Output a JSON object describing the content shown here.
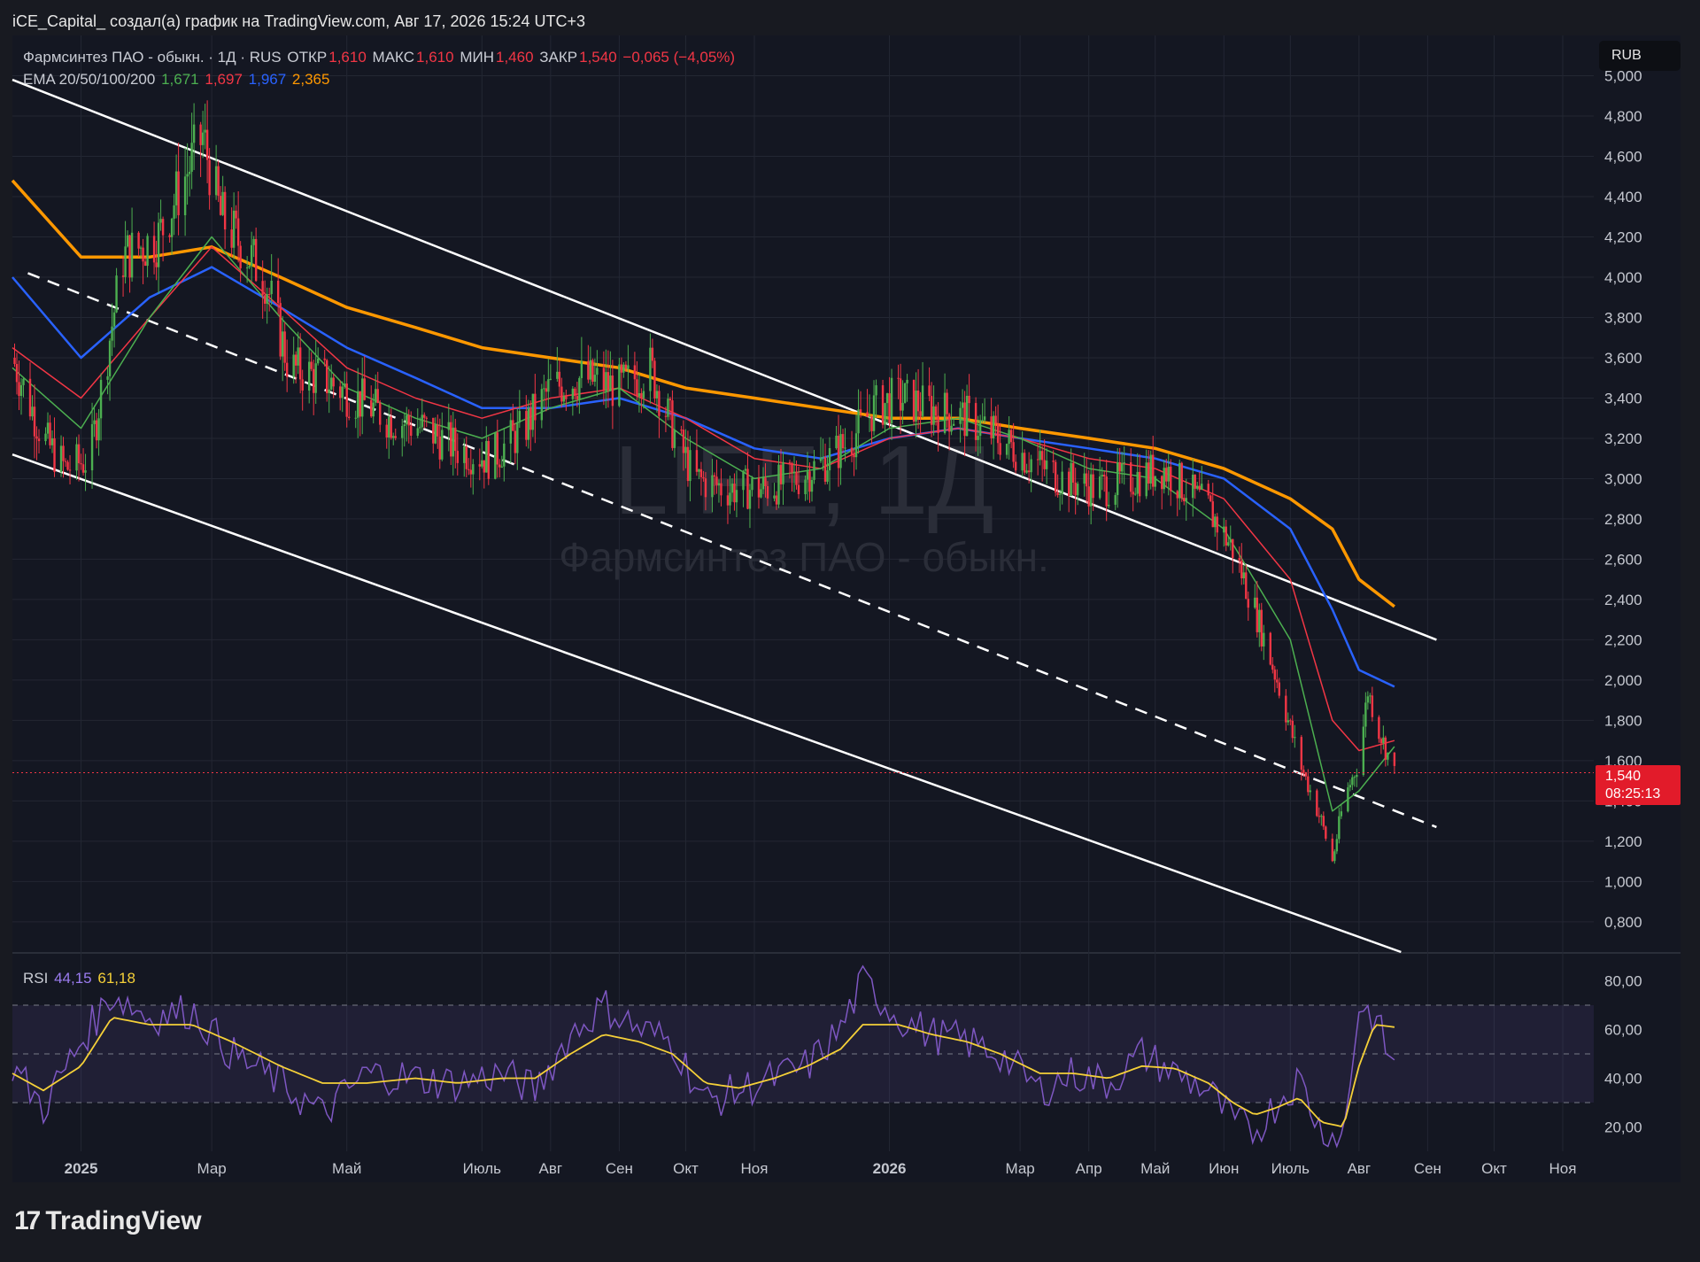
{
  "header": {
    "text": "iCE_Capital_ создал(а) график на TradingView.com, Авг 17, 2026 15:24 UTC+3"
  },
  "legend": {
    "symbol": "Фармсинтез ПАО - обыкн. · 1Д · RUS",
    "open_label": "ОТКР",
    "open": "1,610",
    "high_label": "МАКС",
    "high": "1,610",
    "low_label": "МИН",
    "low": "1,460",
    "close_label": "ЗАКР",
    "close": "1,540",
    "change": "−0,065 (−4,05%)",
    "ema_label": "EMA 20/50/100/200",
    "ema20": "1,671",
    "ema50": "1,697",
    "ema100": "1,967",
    "ema200": "2,365"
  },
  "rsi_legend": {
    "label": "RSI",
    "rsi": "44,15",
    "ma": "61,18"
  },
  "currency": "RUB",
  "price_tag": {
    "price": "1,540",
    "countdown": "08:25:13"
  },
  "watermark": {
    "ticker": "LIFE, 1Д",
    "name": "Фармсинтез ПАО - обыкн."
  },
  "footer": {
    "brand": "TradingView",
    "mark": "17"
  },
  "colors": {
    "background": "#181a21",
    "up": "#4caf50",
    "down": "#f23645",
    "ema20": "#4caf50",
    "ema50": "#f23645",
    "ema100": "#2962ff",
    "ema200": "#ff9800",
    "rsi": "#7e57c2",
    "rsi_ma": "#f5d038"
  },
  "chart_data": {
    "type": "candlestick",
    "price_axis_ticks": [
      "5,000",
      "4,800",
      "4,600",
      "4,400",
      "4,200",
      "4,000",
      "3,800",
      "3,600",
      "3,400",
      "3,200",
      "3,000",
      "2,800",
      "2,600",
      "2,400",
      "2,200",
      "2,000",
      "1,800",
      "1,600",
      "1,400",
      "1,200",
      "1,000",
      "0,800"
    ],
    "price_axis_values": [
      5.0,
      4.8,
      4.6,
      4.4,
      4.2,
      4.0,
      3.8,
      3.6,
      3.4,
      3.2,
      3.0,
      2.8,
      2.6,
      2.4,
      2.2,
      2.0,
      1.8,
      1.6,
      1.4,
      1.2,
      1.0,
      0.8
    ],
    "ylim": [
      0.65,
      5.2
    ],
    "time_axis_labels": [
      "2025",
      "Мар",
      "Май",
      "Июль",
      "Авг",
      "Сен",
      "Окт",
      "Ноя",
      "2026",
      "Мар",
      "Апр",
      "Май",
      "Июн",
      "Июль",
      "Авг",
      "Сен",
      "Окт",
      "Ноя"
    ],
    "time_axis_bold": [
      true,
      false,
      false,
      false,
      false,
      false,
      false,
      false,
      true,
      false,
      false,
      false,
      false,
      false,
      false,
      false,
      false,
      false
    ],
    "time_axis_dates": [
      "2025-01-01",
      "2025-03-01",
      "2025-05-01",
      "2025-07-01",
      "2025-08-01",
      "2025-09-01",
      "2025-10-01",
      "2025-11-01",
      "2026-01-01",
      "2026-03-01",
      "2026-04-01",
      "2026-05-01",
      "2026-06-01",
      "2026-07-01",
      "2026-08-01",
      "2026-09-01",
      "2026-10-01",
      "2026-11-01"
    ],
    "xlim": [
      "2024-12-01",
      "2026-11-15"
    ],
    "last_close": 1.54,
    "close_path": {
      "dates": [
        "2024-12-01",
        "2024-12-15",
        "2024-12-25",
        "2025-01-05",
        "2025-01-20",
        "2025-02-05",
        "2025-02-15",
        "2025-02-25",
        "2025-03-05",
        "2025-03-15",
        "2025-03-25",
        "2025-04-05",
        "2025-04-20",
        "2025-05-05",
        "2025-05-20",
        "2025-06-05",
        "2025-06-20",
        "2025-07-05",
        "2025-07-20",
        "2025-08-01",
        "2025-08-15",
        "2025-09-01",
        "2025-09-15",
        "2025-09-25",
        "2025-10-05",
        "2025-10-20",
        "2025-11-05",
        "2025-11-20",
        "2025-12-05",
        "2025-12-15",
        "2025-12-25",
        "2026-01-05",
        "2026-01-20",
        "2026-02-05",
        "2026-02-20",
        "2026-03-05",
        "2026-03-20",
        "2026-04-05",
        "2026-04-20",
        "2026-05-05",
        "2026-05-15",
        "2026-05-25",
        "2026-06-05",
        "2026-06-15",
        "2026-06-25",
        "2026-07-05",
        "2026-07-15",
        "2026-07-20",
        "2026-07-25",
        "2026-08-01",
        "2026-08-05",
        "2026-08-10",
        "2026-08-17"
      ],
      "values": [
        3.6,
        3.2,
        3.05,
        3.1,
        4.1,
        4.2,
        4.45,
        4.7,
        4.3,
        4.15,
        4.0,
        3.55,
        3.5,
        3.4,
        3.3,
        3.25,
        3.15,
        3.1,
        3.25,
        3.45,
        3.5,
        3.45,
        3.55,
        3.25,
        3.0,
        2.95,
        2.95,
        3.0,
        3.1,
        3.2,
        3.35,
        3.4,
        3.35,
        3.3,
        3.2,
        3.1,
        3.0,
        2.95,
        3.0,
        3.05,
        2.95,
        2.85,
        2.65,
        2.35,
        2.0,
        1.6,
        1.3,
        1.1,
        1.4,
        1.6,
        1.95,
        1.75,
        1.54
      ]
    },
    "ema": {
      "dates": [
        "2024-12-01",
        "2025-01-01",
        "2025-02-01",
        "2025-03-01",
        "2025-04-01",
        "2025-05-01",
        "2025-06-01",
        "2025-07-01",
        "2025-08-01",
        "2025-09-01",
        "2025-10-01",
        "2025-11-01",
        "2025-12-01",
        "2026-01-01",
        "2026-02-01",
        "2026-03-01",
        "2026-04-01",
        "2026-05-01",
        "2026-06-01",
        "2026-07-01",
        "2026-07-20",
        "2026-08-01",
        "2026-08-17"
      ],
      "ema20": [
        3.55,
        3.25,
        3.8,
        4.2,
        3.8,
        3.45,
        3.3,
        3.2,
        3.35,
        3.45,
        3.2,
        3.0,
        3.05,
        3.25,
        3.3,
        3.2,
        3.05,
        3.0,
        2.75,
        2.2,
        1.35,
        1.45,
        1.67
      ],
      "ema50": [
        3.65,
        3.4,
        3.8,
        4.15,
        3.85,
        3.55,
        3.4,
        3.3,
        3.4,
        3.45,
        3.3,
        3.1,
        3.05,
        3.2,
        3.25,
        3.2,
        3.1,
        3.05,
        2.9,
        2.5,
        1.8,
        1.65,
        1.7
      ],
      "ema100": [
        4.0,
        3.6,
        3.9,
        4.05,
        3.85,
        3.65,
        3.5,
        3.35,
        3.35,
        3.4,
        3.3,
        3.15,
        3.1,
        3.2,
        3.25,
        3.2,
        3.15,
        3.1,
        3.0,
        2.75,
        2.35,
        2.05,
        1.967
      ],
      "ema200": [
        4.48,
        4.1,
        4.1,
        4.15,
        4.0,
        3.85,
        3.75,
        3.65,
        3.6,
        3.55,
        3.45,
        3.4,
        3.35,
        3.3,
        3.3,
        3.25,
        3.2,
        3.15,
        3.05,
        2.9,
        2.75,
        2.5,
        2.365
      ]
    },
    "channel": {
      "upper": {
        "from": [
          "2024-12-01",
          4.98
        ],
        "to": [
          "2026-09-05",
          2.2
        ]
      },
      "middle": {
        "from": [
          "2024-12-08",
          4.02
        ],
        "to": [
          "2026-09-05",
          1.27
        ]
      },
      "lower": {
        "from": [
          "2024-12-01",
          3.12
        ],
        "to": [
          "2026-08-20",
          0.65
        ]
      }
    },
    "rsi": {
      "ticks": [
        "80,00",
        "60,00",
        "40,00",
        "20,00"
      ],
      "tick_values": [
        80,
        60,
        40,
        20
      ],
      "ylim": [
        10,
        90
      ],
      "bands": [
        70,
        50,
        30
      ],
      "dates": [
        "2024-12-01",
        "2024-12-15",
        "2025-01-01",
        "2025-01-15",
        "2025-02-01",
        "2025-02-20",
        "2025-03-10",
        "2025-04-01",
        "2025-04-20",
        "2025-05-10",
        "2025-06-01",
        "2025-06-20",
        "2025-07-10",
        "2025-07-25",
        "2025-08-10",
        "2025-08-25",
        "2025-09-10",
        "2025-09-25",
        "2025-10-10",
        "2025-10-25",
        "2025-11-10",
        "2025-11-25",
        "2025-12-10",
        "2025-12-20",
        "2026-01-05",
        "2026-01-20",
        "2026-02-05",
        "2026-02-20",
        "2026-03-10",
        "2026-03-25",
        "2026-04-10",
        "2026-04-25",
        "2026-05-10",
        "2026-05-25",
        "2026-06-05",
        "2026-06-15",
        "2026-06-25",
        "2026-07-05",
        "2026-07-15",
        "2026-07-25",
        "2026-08-01",
        "2026-08-08",
        "2026-08-17"
      ],
      "rsi_values": [
        45,
        28,
        55,
        75,
        65,
        68,
        50,
        38,
        25,
        42,
        40,
        38,
        42,
        35,
        58,
        70,
        60,
        55,
        30,
        35,
        40,
        45,
        60,
        80,
        65,
        58,
        55,
        50,
        35,
        42,
        38,
        50,
        42,
        35,
        22,
        18,
        30,
        40,
        18,
        15,
        70,
        65,
        44
      ],
      "ma_values": [
        42,
        35,
        45,
        65,
        62,
        62,
        55,
        45,
        38,
        38,
        40,
        38,
        40,
        40,
        50,
        58,
        55,
        50,
        38,
        36,
        40,
        45,
        52,
        62,
        62,
        58,
        55,
        50,
        42,
        42,
        40,
        45,
        44,
        38,
        30,
        25,
        28,
        32,
        22,
        20,
        45,
        62,
        61
      ]
    }
  }
}
